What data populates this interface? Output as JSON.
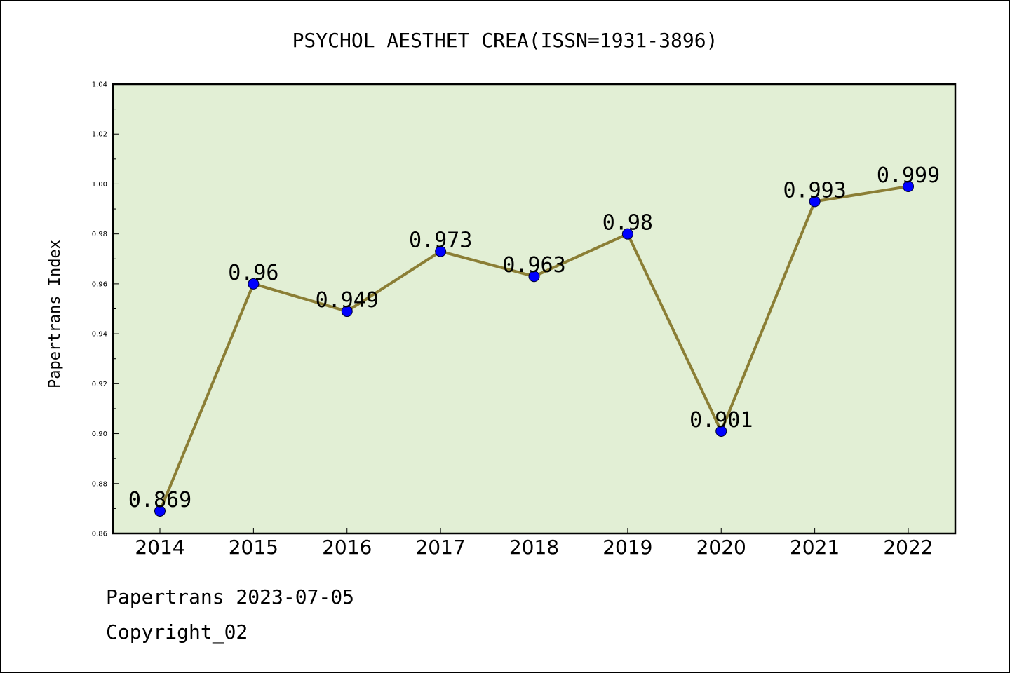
{
  "chart_data": {
    "type": "line",
    "title": "PSYCHOL AESTHET CREA(ISSN=1931-3896)",
    "xlabel": "",
    "ylabel": "Papertrans Index",
    "categories": [
      "2014",
      "2015",
      "2016",
      "2017",
      "2018",
      "2019",
      "2020",
      "2021",
      "2022"
    ],
    "values": [
      0.869,
      0.96,
      0.949,
      0.973,
      0.963,
      0.98,
      0.901,
      0.993,
      0.999
    ],
    "data_labels": [
      "0.869",
      "0.96",
      "0.949",
      "0.973",
      "0.963",
      "0.98",
      "0.901",
      "0.993",
      "0.999"
    ],
    "ylim": [
      0.86,
      1.04
    ],
    "yticks": [
      0.86,
      0.88,
      0.9,
      0.92,
      0.94,
      0.96,
      0.98,
      1.0,
      1.02,
      1.04
    ],
    "ytick_labels": [
      "0.86",
      "0.88",
      "0.90",
      "0.92",
      "0.94",
      "0.96",
      "0.98",
      "1.00",
      "1.02",
      "1.04"
    ],
    "grid": false,
    "colors": {
      "plot_background": "#e2efd5",
      "line": "#8b7e35",
      "marker": "#0000ff"
    }
  },
  "footer": {
    "line1": "Papertrans 2023-07-05",
    "line2": "Copyright_02"
  }
}
